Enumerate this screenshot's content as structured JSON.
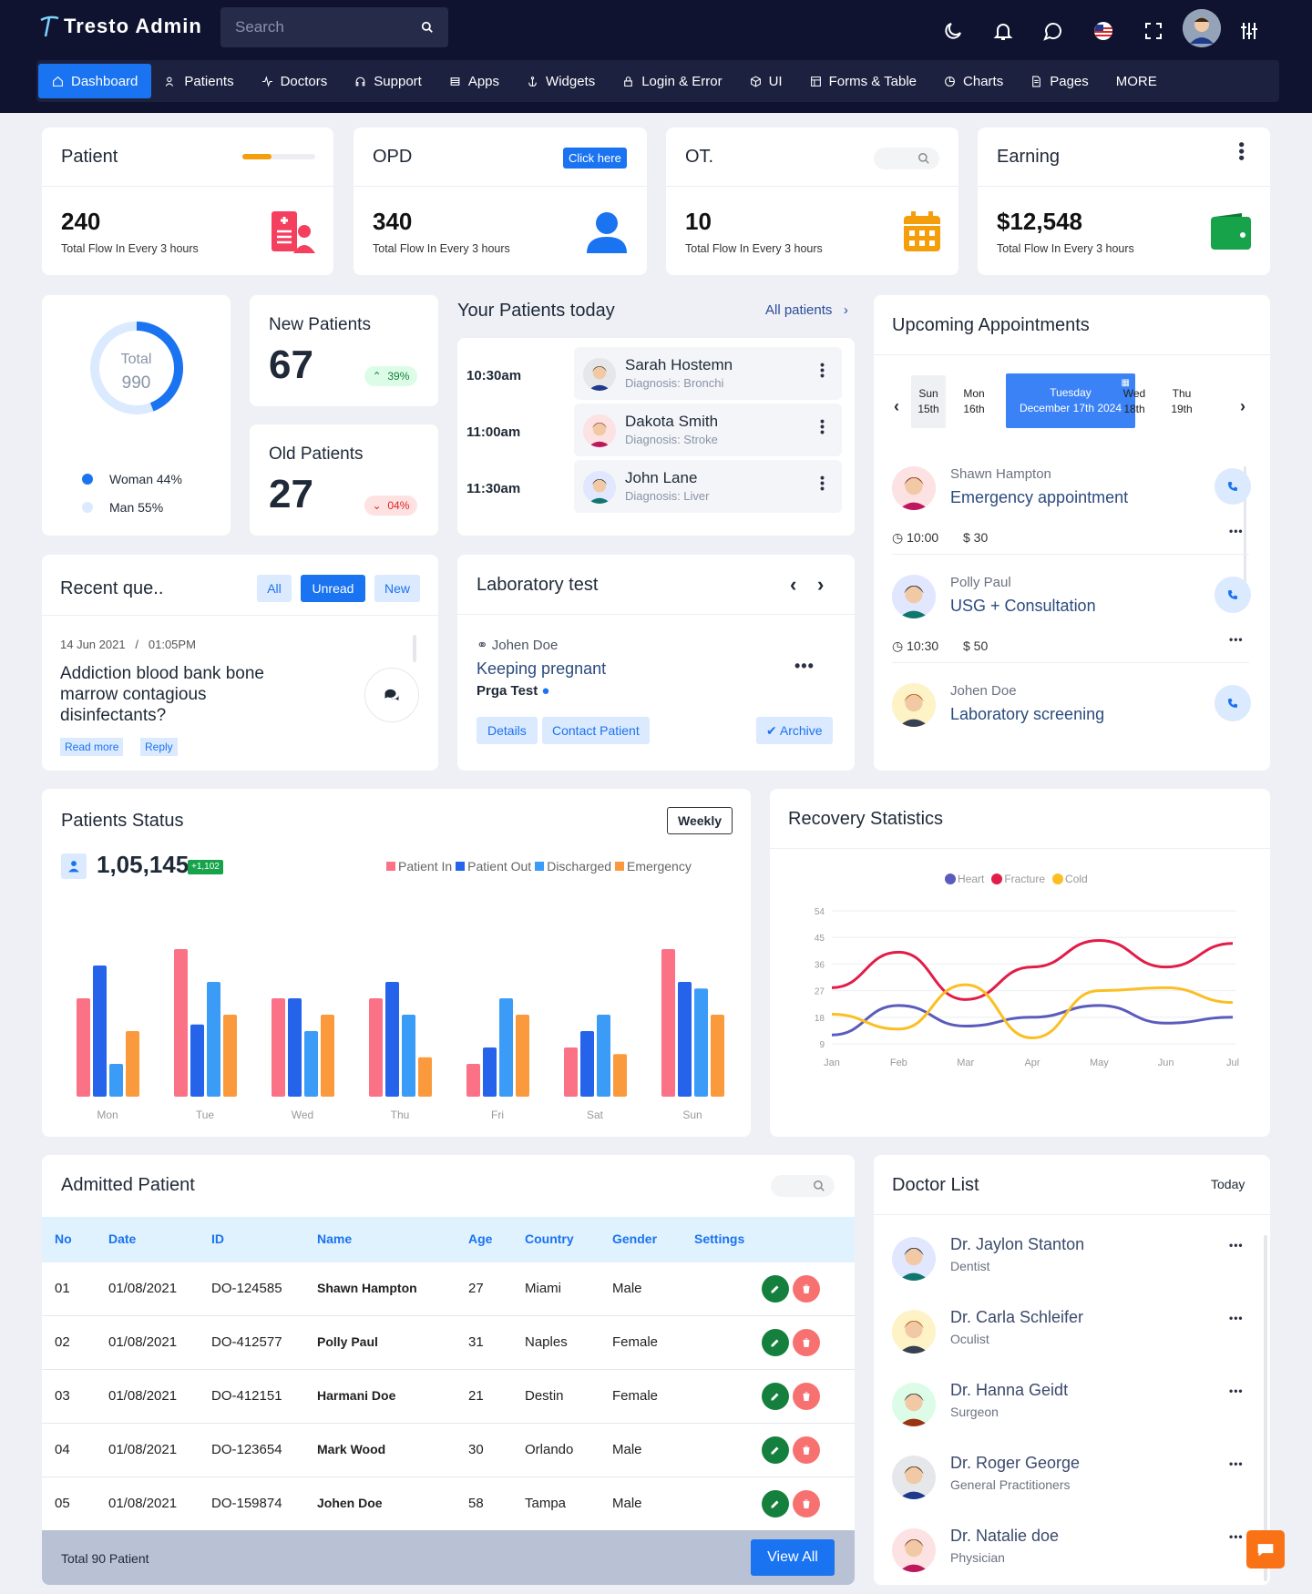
{
  "app": {
    "title": "Tresto Admin",
    "search_placeholder": "Search"
  },
  "nav": [
    "Dashboard",
    "Patients",
    "Doctors",
    "Support",
    "Apps",
    "Widgets",
    "Login & Error",
    "UI",
    "Forms & Table",
    "Charts",
    "Pages",
    "MORE"
  ],
  "stats": [
    {
      "title": "Patient",
      "value": "240",
      "sub": "Total Flow In Every 3 hours",
      "color": "#f43f5e",
      "progress": 0.4
    },
    {
      "title": "OPD",
      "value": "340",
      "sub": "Total Flow In Every 3 hours",
      "color": "#1a73f0",
      "button": "Click here"
    },
    {
      "title": "OT.",
      "value": "10",
      "sub": "Total Flow In Every 3 hours",
      "color": "#f59e0b"
    },
    {
      "title": "Earning",
      "value": "$12,548",
      "sub": "Total Flow In Every 3 hours",
      "color": "#16a34a"
    }
  ],
  "donut": {
    "label": "Total",
    "value": "990",
    "woman": "Woman 44%",
    "man": "Man 55%",
    "woman_share": 0.44
  },
  "new_patients": {
    "title": "New Patients",
    "value": "67",
    "badge": "39%"
  },
  "old_patients": {
    "title": "Old Patients",
    "value": "27",
    "badge": "04%"
  },
  "today": {
    "title": "Your Patients today",
    "link": "All patients",
    "rows": [
      {
        "time": "10:30am",
        "name": "Sarah Hostemn",
        "diag": "Diagnosis: Bronchi"
      },
      {
        "time": "11:00am",
        "name": "Dakota Smith",
        "diag": "Diagnosis: Stroke"
      },
      {
        "time": "11:30am",
        "name": "John Lane",
        "diag": "Diagnosis: Liver"
      }
    ]
  },
  "appointments": {
    "title": "Upcoming Appointments",
    "days": [
      {
        "d": "Sun",
        "n": "15th"
      },
      {
        "d": "Mon",
        "n": "16th"
      },
      {
        "d": "Tuesday",
        "n": "December 17th 2024"
      },
      {
        "d": "Wed",
        "n": "18th"
      },
      {
        "d": "Thu",
        "n": "19th"
      }
    ],
    "items": [
      {
        "name": "Shawn Hampton",
        "type": "Emergency appointment",
        "time": "10:00",
        "price": "$ 30"
      },
      {
        "name": "Polly Paul",
        "type": "USG + Consultation",
        "time": "10:30",
        "price": "$ 50"
      },
      {
        "name": "Johen Doe",
        "type": "Laboratory screening"
      }
    ]
  },
  "queries": {
    "title": "Recent que..",
    "tabs": [
      "All",
      "Unread",
      "New"
    ],
    "date": "14 Jun 2021",
    "time": "01:05PM",
    "text": "Addiction blood bank bone marrow contagious disinfectants?",
    "read": "Read more",
    "reply": "Reply"
  },
  "lab": {
    "title": "Laboratory test",
    "patient": "Johen Doe",
    "test": "Keeping pregnant",
    "sub": "Prga Test",
    "buttons": [
      "Details",
      "Contact Patient"
    ],
    "archive": "Archive"
  },
  "patients_status": {
    "title": "Patients Status",
    "period": "Weekly",
    "total": "1,05,145",
    "delta": "+1,102"
  },
  "recovery": {
    "title": "Recovery Statistics"
  },
  "chart_data": [
    {
      "type": "bar",
      "categories": [
        "Mon",
        "Tue",
        "Wed",
        "Thu",
        "Fri",
        "Sat",
        "Sun"
      ],
      "series": [
        {
          "name": "Patient In",
          "color": "#fb7185",
          "values": [
            60,
            90,
            60,
            60,
            20,
            30,
            90
          ]
        },
        {
          "name": "Patient Out",
          "color": "#2563eb",
          "values": [
            80,
            44,
            60,
            70,
            30,
            40,
            70
          ]
        },
        {
          "name": "Discharged",
          "color": "#3b9cf8",
          "values": [
            20,
            70,
            40,
            50,
            60,
            50,
            66
          ]
        },
        {
          "name": "Emergency",
          "color": "#fb9a3c",
          "values": [
            40,
            50,
            50,
            24,
            50,
            26,
            50
          ]
        }
      ],
      "ylim": [
        0,
        100
      ]
    },
    {
      "type": "line",
      "categories": [
        "Jan",
        "Feb",
        "Mar",
        "Apr",
        "May",
        "Jun",
        "Jul"
      ],
      "yticks": [
        9,
        18,
        27,
        36,
        45,
        54
      ],
      "ylim": [
        9,
        54
      ],
      "series": [
        {
          "name": "Heart",
          "color": "#5b5bbd",
          "values": [
            12,
            22,
            15,
            18,
            22,
            16,
            18
          ]
        },
        {
          "name": "Fracture",
          "color": "#e11d48",
          "values": [
            28,
            40,
            24,
            35,
            44,
            35,
            43
          ]
        },
        {
          "name": "Cold",
          "color": "#fbbf24",
          "values": [
            19,
            14,
            29,
            11,
            27,
            28,
            23
          ]
        }
      ]
    }
  ],
  "admitted": {
    "title": "Admitted Patient",
    "headers": [
      "No",
      "Date",
      "ID",
      "Name",
      "Age",
      "Country",
      "Gender",
      "Settings"
    ],
    "rows": [
      [
        "01",
        "01/08/2021",
        "DO-124585",
        "Shawn Hampton",
        "27",
        "Miami",
        "Male"
      ],
      [
        "02",
        "01/08/2021",
        "DO-412577",
        "Polly Paul",
        "31",
        "Naples",
        "Female"
      ],
      [
        "03",
        "01/08/2021",
        "DO-412151",
        "Harmani Doe",
        "21",
        "Destin",
        "Female"
      ],
      [
        "04",
        "01/08/2021",
        "DO-123654",
        "Mark Wood",
        "30",
        "Orlando",
        "Male"
      ],
      [
        "05",
        "01/08/2021",
        "DO-159874",
        "Johen Doe",
        "58",
        "Tampa",
        "Male"
      ]
    ],
    "footer": "Total 90 Patient",
    "view_all": "View All"
  },
  "doctors": {
    "title": "Doctor List",
    "period": "Today",
    "items": [
      {
        "name": "Dr. Jaylon Stanton",
        "role": "Dentist"
      },
      {
        "name": "Dr. Carla Schleifer",
        "role": "Oculist"
      },
      {
        "name": "Dr. Hanna Geidt",
        "role": "Surgeon"
      },
      {
        "name": "Dr. Roger George",
        "role": "General Practitioners"
      },
      {
        "name": "Dr. Natalie doe",
        "role": "Physician"
      }
    ]
  }
}
